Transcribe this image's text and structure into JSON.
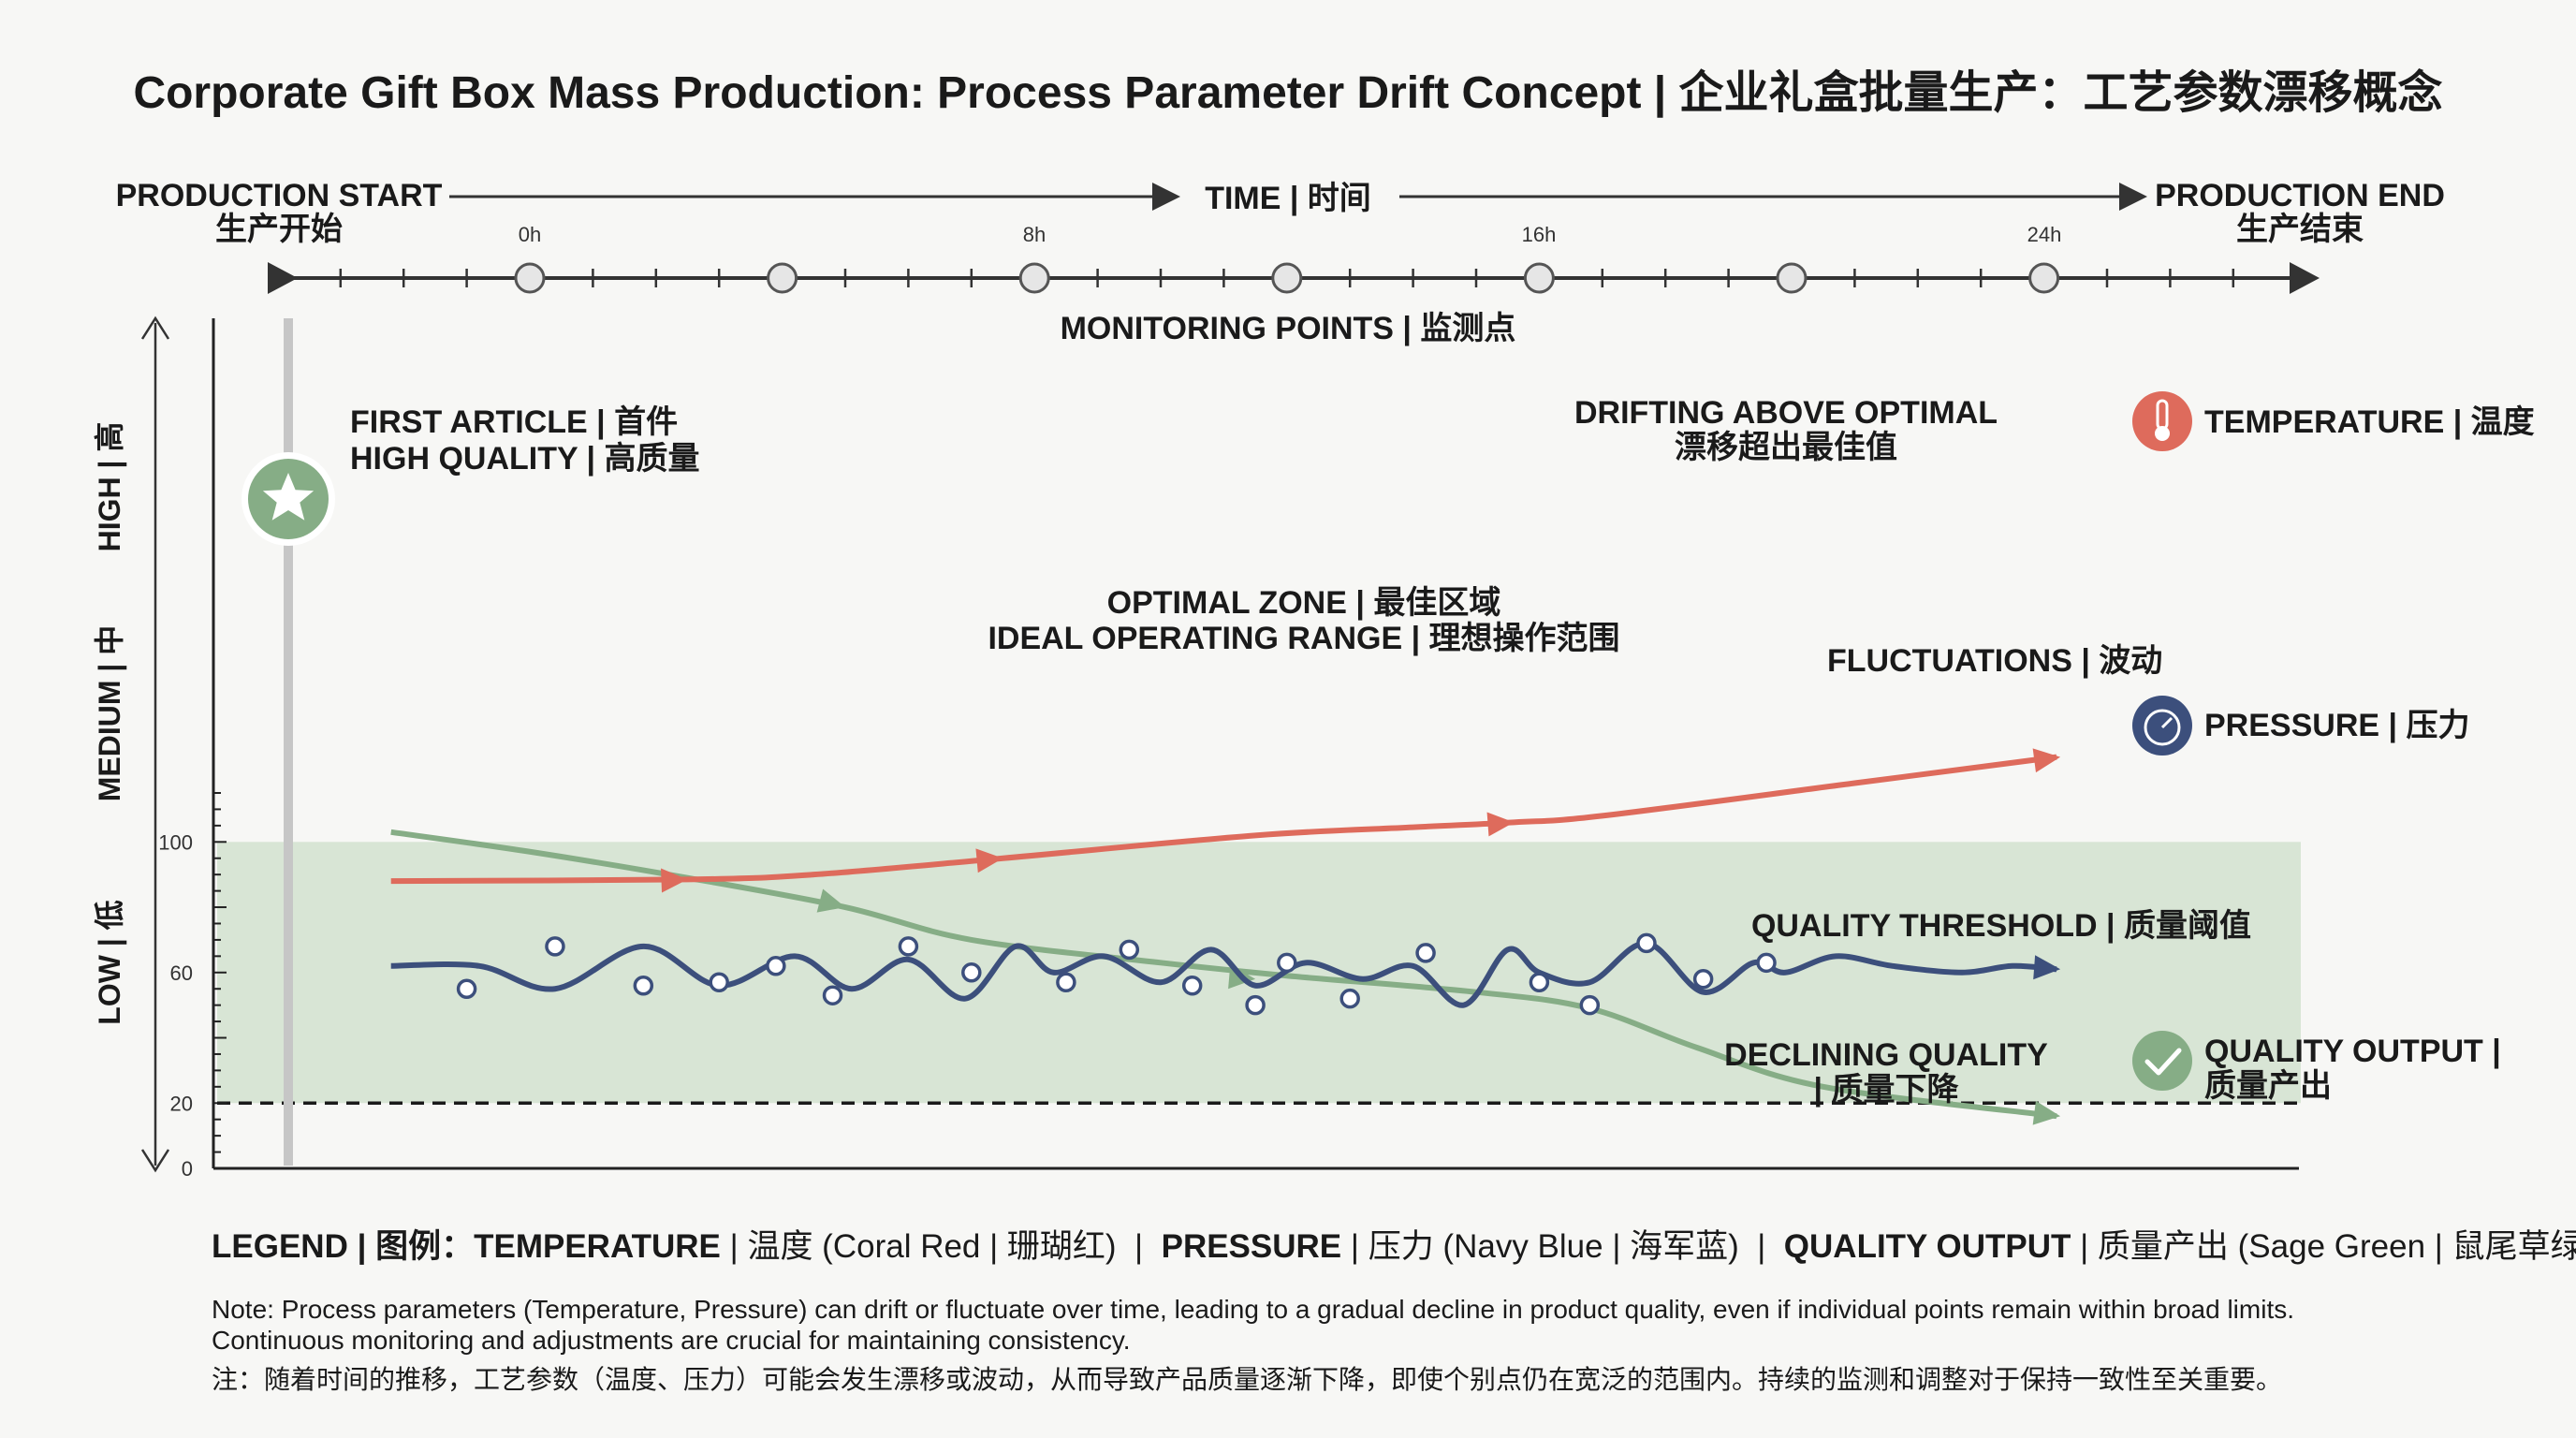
{
  "title": "Corporate Gift Box Mass Production: Process Parameter Drift Concept | 企业礼盒批量生产：工艺参数漂移概念",
  "timeline": {
    "start_en": "PRODUCTION START",
    "start_zh": "生产开始",
    "end_en": "PRODUCTION END",
    "end_zh": "生产结束",
    "time_label": "TIME | 时间",
    "monitoring_label": "MONITORING POINTS | 监测点",
    "ticks": [
      "0h",
      "8h",
      "16h",
      "24h"
    ]
  },
  "colors": {
    "temperature": "#de6b5c",
    "pressure": "#3c4f7c",
    "quality": "#86ad86",
    "zone": "#d8e5d5",
    "background": "#f7f7f5"
  },
  "chart_data": {
    "type": "line",
    "title": "Corporate Gift Box Mass Production: Process Parameter Drift Concept | 企业礼盒批量生产：工艺参数漂移概念",
    "xlabel": "TIME | 时间",
    "y_axis_labels": [
      "HIGH | 高",
      "MEDIUM | 中",
      "LOW | 低"
    ],
    "x_ticks": [
      "0h",
      "8h",
      "16h",
      "24h"
    ],
    "xlim": [
      -3,
      27
    ],
    "ylim": [
      0,
      120
    ],
    "y_ticks": [
      0,
      20,
      60,
      100
    ],
    "optimal_zone": {
      "range": [
        20,
        100
      ],
      "label_1": "OPTIMAL ZONE | 最佳区域",
      "label_2": "IDEAL OPERATING RANGE | 理想操作范围"
    },
    "threshold": {
      "value": 20,
      "label": "QUALITY THRESHOLD | 质量阈值"
    },
    "series": [
      {
        "name": "TEMPERATURE | 温度",
        "color": "#de6b5c",
        "x": [
          -2.2,
          2.5,
          4.5,
          7.5,
          11.5,
          14.0,
          15.6,
          17.0,
          21.0,
          24.2
        ],
        "y": [
          88,
          88.5,
          90,
          95,
          102,
          104.5,
          106,
          108,
          118,
          126
        ]
      },
      {
        "name": "PRESSURE | 压力",
        "color": "#3c4f7c",
        "x": [
          -2.2,
          -0.8,
          0.4,
          1.8,
          3.0,
          4.2,
          5.1,
          6.0,
          6.9,
          7.7,
          8.3,
          9.1,
          10.0,
          10.8,
          11.5,
          12.3,
          13.2,
          14.0,
          14.8,
          15.5,
          16.0,
          16.8,
          17.7,
          18.6,
          19.4,
          19.9,
          20.7,
          21.6,
          22.7,
          23.5,
          24.2
        ],
        "y": [
          62,
          62,
          55,
          68,
          56,
          65,
          55,
          64,
          52,
          68,
          60,
          65,
          57,
          67,
          56,
          63,
          58,
          62,
          50,
          67,
          60,
          57,
          69,
          54,
          63,
          60,
          65,
          62,
          60,
          62,
          61
        ]
      },
      {
        "name": "QUALITY OUTPUT | 质量产出",
        "color": "#86ad86",
        "x": [
          -2.2,
          0,
          2.5,
          5.0,
          7.0,
          10.0,
          12.0,
          15.0,
          16.8,
          18.5,
          20.5,
          24.2
        ],
        "y": [
          103,
          97,
          89,
          80,
          70,
          63,
          59,
          54,
          49,
          37,
          25,
          16
        ]
      }
    ],
    "monitoring_points": {
      "pressure": [
        [
          -1.0,
          55
        ],
        [
          0.4,
          68
        ],
        [
          1.8,
          56
        ],
        [
          3.0,
          57
        ],
        [
          3.9,
          62
        ],
        [
          4.8,
          53
        ],
        [
          6.0,
          68
        ],
        [
          7.0,
          60
        ],
        [
          8.5,
          57
        ],
        [
          9.5,
          67
        ],
        [
          10.5,
          56
        ],
        [
          11.5,
          50
        ],
        [
          12.0,
          63
        ],
        [
          13.0,
          52
        ],
        [
          14.2,
          66
        ],
        [
          16.0,
          57
        ],
        [
          16.8,
          50
        ],
        [
          17.7,
          69
        ],
        [
          18.6,
          58
        ],
        [
          19.6,
          63
        ]
      ]
    },
    "annotations": [
      {
        "text_1": "FIRST ARTICLE | 首件",
        "text_2": "HIGH QUALITY | 高质量"
      },
      {
        "text_1": "DRIFTING ABOVE OPTIMAL",
        "text_2": "漂移超出最佳值"
      },
      {
        "text_1": "FLUCTUATIONS | 波动"
      },
      {
        "text_1": "DECLINING QUALITY",
        "text_2": "| 质量下降"
      }
    ],
    "series_labels": {
      "temperature": "TEMPERATURE | 温度",
      "pressure": "PRESSURE | 压力",
      "quality_1": "QUALITY OUTPUT |",
      "quality_2": "质量产出"
    },
    "legend": "bottom"
  },
  "legend": {
    "prefix": "LEGEND | 图例：",
    "temp_bold": "TEMPERATURE",
    "temp_rest": " | 温度 (Coral Red | 珊瑚红)",
    "sep": "  |  ",
    "pressure_bold": "PRESSURE",
    "pressure_rest": " | 压力 (Navy Blue | 海军蓝)",
    "quality_bold": "QUALITY OUTPUT",
    "quality_rest": " | 质量产出 (Sage Green | 鼠尾草绿)"
  },
  "note": {
    "line1": "Note: Process parameters (Temperature, Pressure) can drift or fluctuate over time, leading to a gradual decline in product quality, even if individual points remain within broad limits.",
    "line2": "Continuous monitoring and adjustments are crucial for maintaining consistency.",
    "line3": "注：随着时间的推移，工艺参数（温度、压力）可能会发生漂移或波动，从而导致产品质量逐渐下降，即使个别点仍在宽泛的范围内。持续的监测和调整对于保持一致性至关重要。"
  }
}
